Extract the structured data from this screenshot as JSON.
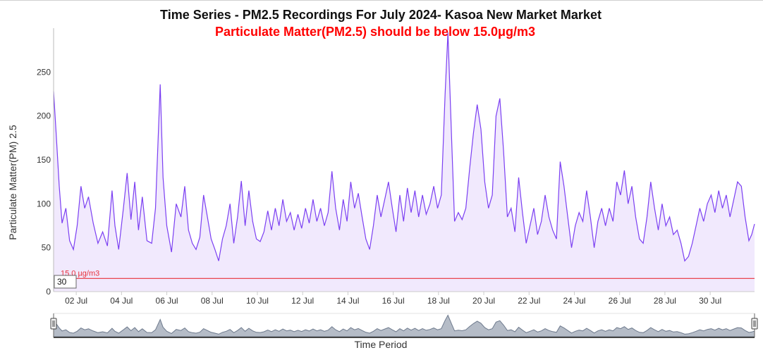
{
  "chart_data": {
    "type": "area",
    "title": "Time Series - PM2.5 Recordings For July 2024- Kasoa New Market Market",
    "subtitle": "Particulate Matter(PM2.5) should be below 15.0μg/m3",
    "ylabel": "Particulate Matter(PM) 2.5",
    "xlabel": "Time Period",
    "ylim": [
      0,
      300
    ],
    "xlim": [
      "2024-07-01T00:00",
      "2024-07-31T23:00"
    ],
    "y_ticks": [
      "0",
      "50",
      "100",
      "150",
      "200",
      "250"
    ],
    "x_ticks": [
      "02 Jul",
      "04 Jul",
      "06 Jul",
      "08 Jul",
      "10 Jul",
      "12 Jul",
      "14 Jul",
      "16 Jul",
      "18 Jul",
      "20 Jul",
      "22 Jul",
      "24 Jul",
      "26 Jul",
      "28 Jul",
      "30 Jul"
    ],
    "threshold": {
      "value": 15,
      "label": "15.0 µg/m3",
      "color": "#e8303a"
    },
    "y_badge": "30",
    "series": [
      {
        "color": "#7b3ff2",
        "fill": "#f1e9fd",
        "points": [
          [
            "2024-07-01T00:00",
            228
          ],
          [
            "2024-07-01T03:00",
            175
          ],
          [
            "2024-07-01T06:00",
            120
          ],
          [
            "2024-07-01T09:00",
            78
          ],
          [
            "2024-07-01T13:00",
            95
          ],
          [
            "2024-07-01T17:00",
            58
          ],
          [
            "2024-07-01T21:00",
            48
          ],
          [
            "2024-07-02T01:00",
            75
          ],
          [
            "2024-07-02T05:00",
            120
          ],
          [
            "2024-07-02T09:00",
            95
          ],
          [
            "2024-07-02T13:00",
            108
          ],
          [
            "2024-07-02T18:00",
            78
          ],
          [
            "2024-07-02T23:00",
            55
          ],
          [
            "2024-07-03T04:00",
            68
          ],
          [
            "2024-07-03T09:00",
            52
          ],
          [
            "2024-07-03T14:00",
            115
          ],
          [
            "2024-07-03T17:00",
            75
          ],
          [
            "2024-07-03T21:00",
            48
          ],
          [
            "2024-07-04T02:00",
            95
          ],
          [
            "2024-07-04T06:00",
            135
          ],
          [
            "2024-07-04T10:00",
            82
          ],
          [
            "2024-07-04T14:00",
            125
          ],
          [
            "2024-07-04T18:00",
            70
          ],
          [
            "2024-07-04T22:00",
            108
          ],
          [
            "2024-07-05T03:00",
            58
          ],
          [
            "2024-07-05T08:00",
            55
          ],
          [
            "2024-07-05T12:00",
            95
          ],
          [
            "2024-07-05T17:00",
            236
          ],
          [
            "2024-07-05T20:00",
            130
          ],
          [
            "2024-07-06T00:00",
            75
          ],
          [
            "2024-07-06T05:00",
            45
          ],
          [
            "2024-07-06T10:00",
            100
          ],
          [
            "2024-07-06T15:00",
            85
          ],
          [
            "2024-07-06T19:00",
            120
          ],
          [
            "2024-07-06T23:00",
            70
          ],
          [
            "2024-07-07T03:00",
            55
          ],
          [
            "2024-07-07T07:00",
            48
          ],
          [
            "2024-07-07T11:00",
            62
          ],
          [
            "2024-07-07T15:00",
            110
          ],
          [
            "2024-07-07T19:00",
            85
          ],
          [
            "2024-07-07T23:00",
            60
          ],
          [
            "2024-07-08T03:00",
            48
          ],
          [
            "2024-07-08T07:00",
            35
          ],
          [
            "2024-07-08T11:00",
            60
          ],
          [
            "2024-07-08T15:00",
            75
          ],
          [
            "2024-07-08T19:00",
            100
          ],
          [
            "2024-07-08T23:00",
            55
          ],
          [
            "2024-07-09T03:00",
            85
          ],
          [
            "2024-07-09T07:00",
            126
          ],
          [
            "2024-07-09T11:00",
            75
          ],
          [
            "2024-07-09T15:00",
            115
          ],
          [
            "2024-07-09T19:00",
            80
          ],
          [
            "2024-07-09T23:00",
            60
          ],
          [
            "2024-07-10T03:00",
            57
          ],
          [
            "2024-07-10T07:00",
            68
          ],
          [
            "2024-07-10T11:00",
            92
          ],
          [
            "2024-07-10T15:00",
            70
          ],
          [
            "2024-07-10T19:00",
            95
          ],
          [
            "2024-07-10T23:00",
            75
          ],
          [
            "2024-07-11T03:00",
            105
          ],
          [
            "2024-07-11T07:00",
            80
          ],
          [
            "2024-07-11T11:00",
            90
          ],
          [
            "2024-07-11T15:00",
            70
          ],
          [
            "2024-07-11T19:00",
            88
          ],
          [
            "2024-07-11T23:00",
            72
          ],
          [
            "2024-07-12T03:00",
            95
          ],
          [
            "2024-07-12T07:00",
            78
          ],
          [
            "2024-07-12T11:00",
            105
          ],
          [
            "2024-07-12T15:00",
            80
          ],
          [
            "2024-07-12T19:00",
            95
          ],
          [
            "2024-07-12T23:00",
            75
          ],
          [
            "2024-07-13T03:00",
            90
          ],
          [
            "2024-07-13T07:00",
            137
          ],
          [
            "2024-07-13T11:00",
            95
          ],
          [
            "2024-07-13T15:00",
            70
          ],
          [
            "2024-07-13T19:00",
            105
          ],
          [
            "2024-07-13T23:00",
            80
          ],
          [
            "2024-07-14T03:00",
            125
          ],
          [
            "2024-07-14T07:00",
            95
          ],
          [
            "2024-07-14T11:00",
            112
          ],
          [
            "2024-07-14T15:00",
            85
          ],
          [
            "2024-07-14T19:00",
            60
          ],
          [
            "2024-07-14T23:00",
            48
          ],
          [
            "2024-07-15T03:00",
            75
          ],
          [
            "2024-07-15T07:00",
            110
          ],
          [
            "2024-07-15T11:00",
            85
          ],
          [
            "2024-07-15T15:00",
            105
          ],
          [
            "2024-07-15T19:00",
            125
          ],
          [
            "2024-07-15T23:00",
            95
          ],
          [
            "2024-07-16T03:00",
            68
          ],
          [
            "2024-07-16T07:00",
            110
          ],
          [
            "2024-07-16T11:00",
            80
          ],
          [
            "2024-07-16T15:00",
            118
          ],
          [
            "2024-07-16T19:00",
            90
          ],
          [
            "2024-07-16T23:00",
            115
          ],
          [
            "2024-07-17T03:00",
            85
          ],
          [
            "2024-07-17T07:00",
            110
          ],
          [
            "2024-07-17T11:00",
            88
          ],
          [
            "2024-07-17T15:00",
            100
          ],
          [
            "2024-07-17T19:00",
            120
          ],
          [
            "2024-07-17T23:00",
            95
          ],
          [
            "2024-07-18T03:00",
            110
          ],
          [
            "2024-07-18T07:00",
            225
          ],
          [
            "2024-07-18T10:00",
            295
          ],
          [
            "2024-07-18T14:00",
            170
          ],
          [
            "2024-07-18T17:00",
            80
          ],
          [
            "2024-07-18T21:00",
            90
          ],
          [
            "2024-07-19T01:00",
            82
          ],
          [
            "2024-07-19T05:00",
            95
          ],
          [
            "2024-07-19T09:00",
            140
          ],
          [
            "2024-07-19T13:00",
            180
          ],
          [
            "2024-07-19T17:00",
            213
          ],
          [
            "2024-07-19T21:00",
            185
          ],
          [
            "2024-07-20T01:00",
            125
          ],
          [
            "2024-07-20T05:00",
            95
          ],
          [
            "2024-07-20T09:00",
            110
          ],
          [
            "2024-07-20T13:00",
            200
          ],
          [
            "2024-07-20T17:00",
            220
          ],
          [
            "2024-07-20T21:00",
            160
          ],
          [
            "2024-07-21T01:00",
            85
          ],
          [
            "2024-07-21T05:00",
            95
          ],
          [
            "2024-07-21T09:00",
            68
          ],
          [
            "2024-07-21T13:00",
            130
          ],
          [
            "2024-07-21T17:00",
            90
          ],
          [
            "2024-07-21T21:00",
            55
          ],
          [
            "2024-07-22T01:00",
            75
          ],
          [
            "2024-07-22T05:00",
            95
          ],
          [
            "2024-07-22T09:00",
            65
          ],
          [
            "2024-07-22T13:00",
            80
          ],
          [
            "2024-07-22T17:00",
            110
          ],
          [
            "2024-07-22T21:00",
            85
          ],
          [
            "2024-07-23T01:00",
            70
          ],
          [
            "2024-07-23T05:00",
            60
          ],
          [
            "2024-07-23T09:00",
            148
          ],
          [
            "2024-07-23T13:00",
            120
          ],
          [
            "2024-07-23T17:00",
            85
          ],
          [
            "2024-07-23T21:00",
            50
          ],
          [
            "2024-07-24T01:00",
            75
          ],
          [
            "2024-07-24T05:00",
            90
          ],
          [
            "2024-07-24T09:00",
            80
          ],
          [
            "2024-07-24T13:00",
            115
          ],
          [
            "2024-07-24T17:00",
            85
          ],
          [
            "2024-07-24T21:00",
            50
          ],
          [
            "2024-07-25T01:00",
            80
          ],
          [
            "2024-07-25T05:00",
            95
          ],
          [
            "2024-07-25T09:00",
            75
          ],
          [
            "2024-07-25T13:00",
            95
          ],
          [
            "2024-07-25T17:00",
            80
          ],
          [
            "2024-07-25T21:00",
            125
          ],
          [
            "2024-07-26T01:00",
            110
          ],
          [
            "2024-07-26T05:00",
            138
          ],
          [
            "2024-07-26T09:00",
            100
          ],
          [
            "2024-07-26T13:00",
            120
          ],
          [
            "2024-07-26T17:00",
            85
          ],
          [
            "2024-07-26T21:00",
            60
          ],
          [
            "2024-07-27T01:00",
            55
          ],
          [
            "2024-07-27T05:00",
            85
          ],
          [
            "2024-07-27T09:00",
            125
          ],
          [
            "2024-07-27T13:00",
            95
          ],
          [
            "2024-07-27T17:00",
            70
          ],
          [
            "2024-07-27T21:00",
            100
          ],
          [
            "2024-07-28T01:00",
            75
          ],
          [
            "2024-07-28T05:00",
            85
          ],
          [
            "2024-07-28T09:00",
            65
          ],
          [
            "2024-07-28T13:00",
            70
          ],
          [
            "2024-07-28T17:00",
            55
          ],
          [
            "2024-07-28T21:00",
            35
          ],
          [
            "2024-07-29T01:00",
            40
          ],
          [
            "2024-07-29T05:00",
            55
          ],
          [
            "2024-07-29T09:00",
            75
          ],
          [
            "2024-07-29T13:00",
            95
          ],
          [
            "2024-07-29T17:00",
            80
          ],
          [
            "2024-07-29T21:00",
            100
          ],
          [
            "2024-07-30T01:00",
            110
          ],
          [
            "2024-07-30T05:00",
            90
          ],
          [
            "2024-07-30T09:00",
            115
          ],
          [
            "2024-07-30T13:00",
            95
          ],
          [
            "2024-07-30T17:00",
            110
          ],
          [
            "2024-07-30T21:00",
            85
          ],
          [
            "2024-07-31T01:00",
            105
          ],
          [
            "2024-07-31T05:00",
            125
          ],
          [
            "2024-07-31T09:00",
            120
          ],
          [
            "2024-07-31T13:00",
            85
          ],
          [
            "2024-07-31T17:00",
            58
          ],
          [
            "2024-07-31T20:00",
            65
          ],
          [
            "2024-07-31T23:00",
            77
          ]
        ]
      }
    ]
  }
}
